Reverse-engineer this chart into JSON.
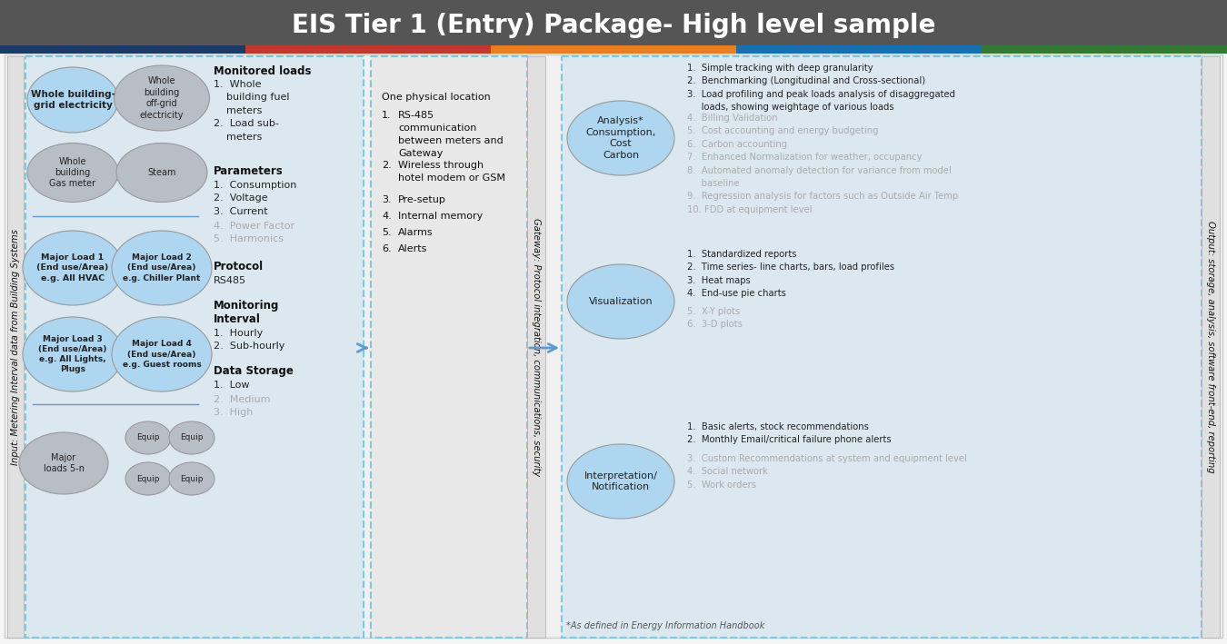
{
  "title": "EIS Tier 1 (Entry) Package- High level sample",
  "title_bg": "#555555",
  "title_color": "#ffffff",
  "color_bar_data": [
    [
      0,
      270,
      "#1a3a6b"
    ],
    [
      270,
      540,
      "#c0392b"
    ],
    [
      540,
      810,
      "#e67e22"
    ],
    [
      810,
      1080,
      "#1a6faf"
    ],
    [
      1080,
      1350,
      "#2e7d32"
    ]
  ],
  "circle_blue": "#aed6f1",
  "circle_gray": "#b8bec5",
  "rotated_label_left": "Input: Metering Interval data from Building Systems",
  "rotated_label_mid": "Gateway: Protocol integration, communications, security",
  "rotated_label_right": "Output: storage, analysis, software front-end, reporting",
  "mid_text_line1": "One physical location",
  "mid_text_items": [
    [
      "1.",
      "RS-485\ncommunication\nbetween meters and\nGateway"
    ],
    [
      "2.",
      "Wireless through\nhotel modem or GSM"
    ],
    [
      "3.",
      "Pre-setup"
    ],
    [
      "4.",
      "Internal memory"
    ],
    [
      "5.",
      "Alarms"
    ],
    [
      "6.",
      "Alerts"
    ]
  ],
  "right_circles": [
    "Analysis*\nConsumption,\nCost\nCarbon",
    "Visualization",
    "Interpretation/\nNotification"
  ],
  "right_analysis_dark": "1.  Simple tracking with deep granularity\n2.  Benchmarking (Longitudinal and Cross-sectional)\n3.  Load profiling and peak loads analysis of disaggregated\n     loads, showing weightage of various loads",
  "right_analysis_gray": "4.  Billing Validation\n5.  Cost accounting and energy budgeting\n6.  Carbon accounting\n7.  Enhanced Normalization for weather, occupancy\n8.  Automated anomaly detection for variance from model\n     baseline\n9.  Regression analysis for factors such as Outside Air Temp\n10. FDD at equipment level",
  "right_viz_dark": "1.  Standardized reports\n2.  Time series- line charts, bars, load profiles\n3.  Heat maps\n4.  End-use pie charts",
  "right_viz_gray": "5.  X-Y plots\n6.  3-D plots",
  "right_interp_dark": "1.  Basic alerts, stock recommendations\n2.  Monthly Email/critical failure phone alerts",
  "right_interp_gray": "3.  Custom Recommendations at system and equipment level\n4.  Social network\n5.  Work orders",
  "footnote": "*As defined in Energy Information Handbook"
}
